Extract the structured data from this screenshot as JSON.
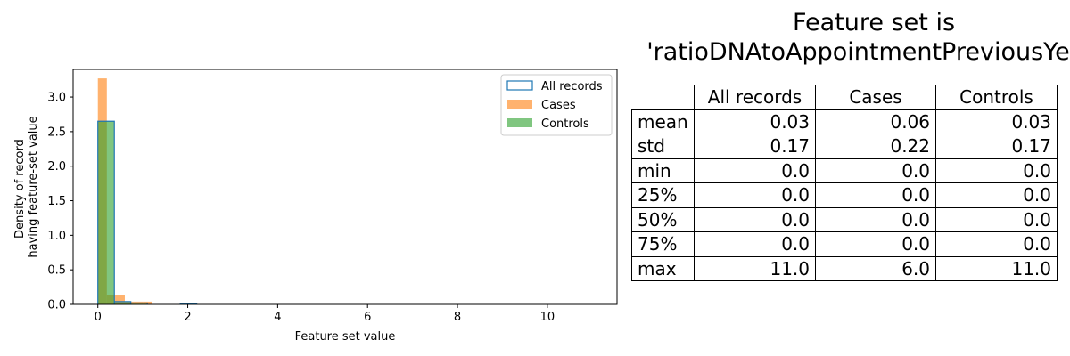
{
  "chart_data": [
    {
      "type": "bar",
      "title": "",
      "xlabel": "Feature set value",
      "ylabel_lines": [
        "Density of record",
        "having feature-set value"
      ],
      "xlim": [
        -0.55,
        11.55
      ],
      "ylim": [
        0,
        3.4
      ],
      "xticks": [
        0,
        2,
        4,
        6,
        8,
        10
      ],
      "yticks": [
        0.0,
        0.5,
        1.0,
        1.5,
        2.0,
        2.5,
        3.0
      ],
      "legend_position": "top-right",
      "grid": false,
      "series": [
        {
          "name": "All records",
          "style": "step-outline",
          "color": "#1f77b4",
          "bins": [
            [
              0,
              0.367,
              2.65
            ],
            [
              0.367,
              0.733,
              0.04
            ],
            [
              0.733,
              1.1,
              0.02
            ],
            [
              1.833,
              2.2,
              0.01
            ]
          ]
        },
        {
          "name": "Cases",
          "style": "filled",
          "color": "#ff7f0e",
          "opacity": 0.6,
          "bins": [
            [
              0,
              0.2,
              3.27
            ],
            [
              0.2,
              0.4,
              0.14
            ],
            [
              0.4,
              0.6,
              0.14
            ],
            [
              0.6,
              0.8,
              0.04
            ],
            [
              0.8,
              1.0,
              0.04
            ],
            [
              1.0,
              1.2,
              0.04
            ]
          ]
        },
        {
          "name": "Controls",
          "style": "filled",
          "color": "#2ca02c",
          "opacity": 0.6,
          "bins": [
            [
              0,
              0.367,
              2.65
            ],
            [
              0.367,
              0.733,
              0.03
            ],
            [
              0.733,
              1.1,
              0.01
            ]
          ]
        }
      ]
    },
    {
      "type": "table",
      "title_lines": [
        "Feature set is",
        "'ratioDNAtoAppointmentPreviousYear'"
      ],
      "columns": [
        "All records",
        "Cases",
        "Controls"
      ],
      "rows": [
        {
          "label": "mean",
          "values": [
            "0.03",
            "0.06",
            "0.03"
          ]
        },
        {
          "label": "std",
          "values": [
            "0.17",
            "0.22",
            "0.17"
          ]
        },
        {
          "label": "min",
          "values": [
            "0.0",
            "0.0",
            "0.0"
          ]
        },
        {
          "label": "25%",
          "values": [
            "0.0",
            "0.0",
            "0.0"
          ]
        },
        {
          "label": "50%",
          "values": [
            "0.0",
            "0.0",
            "0.0"
          ]
        },
        {
          "label": "75%",
          "values": [
            "0.0",
            "0.0",
            "0.0"
          ]
        },
        {
          "label": "max",
          "values": [
            "11.0",
            "6.0",
            "11.0"
          ]
        }
      ]
    }
  ]
}
